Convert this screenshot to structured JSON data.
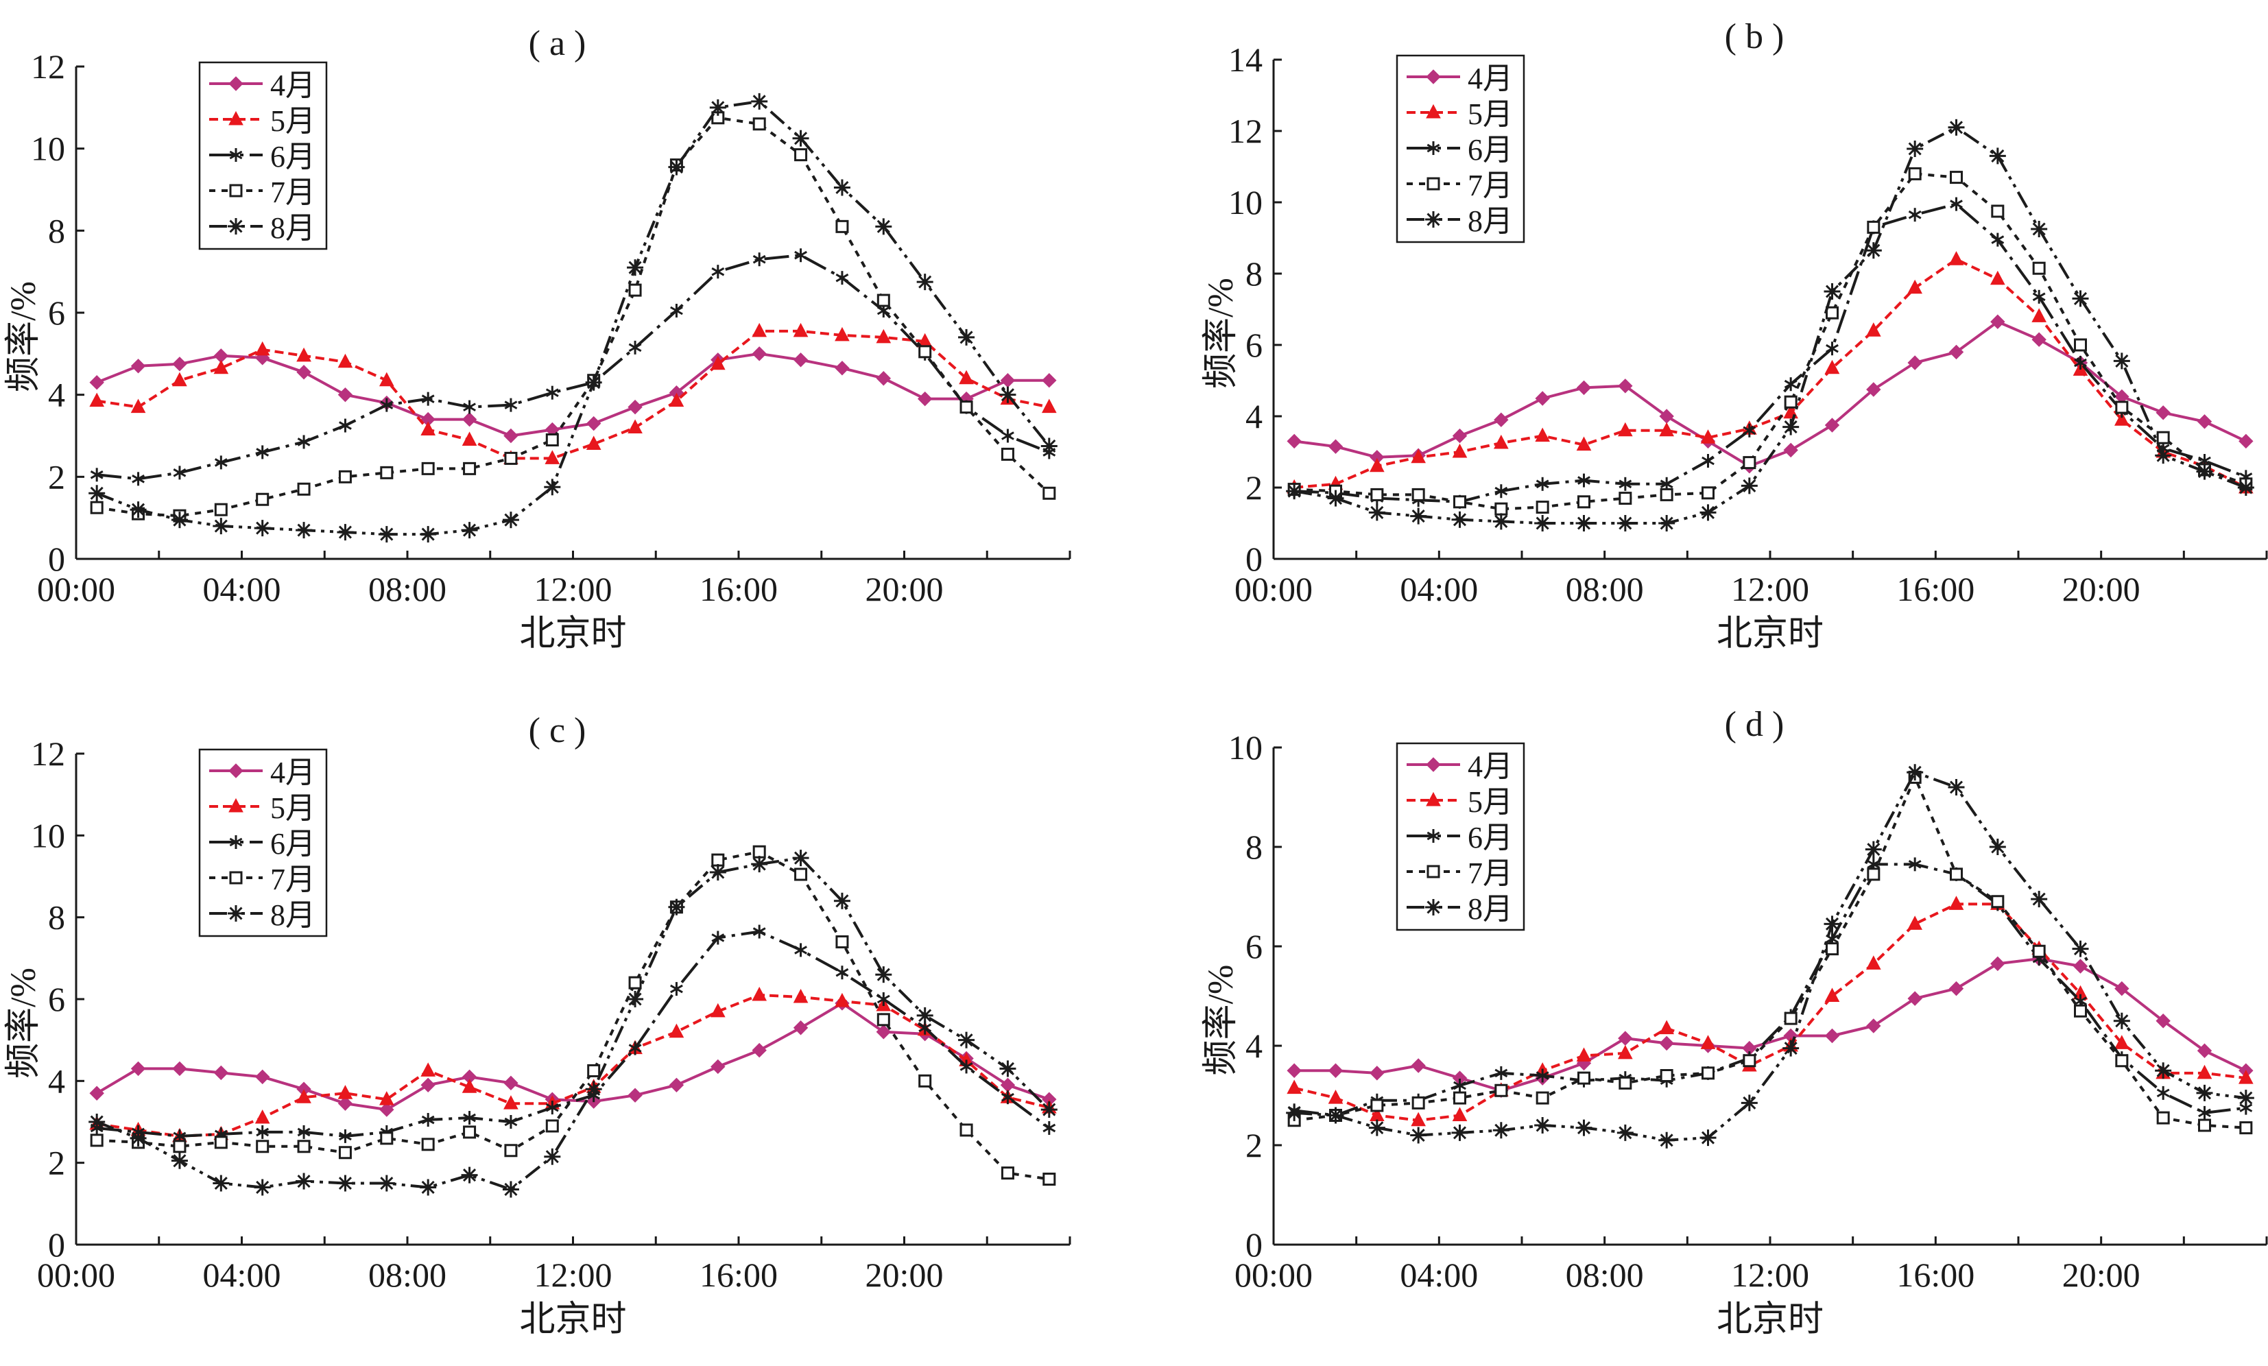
{
  "figure": {
    "colors": {
      "4月": "#b8327e",
      "5月": "#e8171d",
      "6月": "#1c1c1c",
      "7月": "#1c1c1c",
      "8月": "#1c1c1c",
      "axis": "#1a1a1a"
    }
  },
  "chart_data": [
    {
      "panel": "(a)",
      "type": "line",
      "title": "( a )",
      "xlabel": "北京时",
      "ylabel": "频率/%",
      "xlim": [
        0,
        24
      ],
      "ylim": [
        0,
        12
      ],
      "yticks": [
        0,
        2,
        4,
        6,
        8,
        10,
        12
      ],
      "xtick_labels": [
        "00:00",
        "04:00",
        "08:00",
        "12:00",
        "16:00",
        "20:00"
      ],
      "legend_position": "top-left",
      "grid": false,
      "x": [
        0.5,
        1.5,
        2.5,
        3.5,
        4.5,
        5.5,
        6.5,
        7.5,
        8.5,
        9.5,
        10.5,
        11.5,
        12.5,
        13.5,
        14.5,
        15.5,
        16.5,
        17.5,
        18.5,
        19.5,
        20.5,
        21.5,
        22.5,
        23.5
      ],
      "series": [
        {
          "name": "4月",
          "values": [
            4.3,
            4.7,
            4.75,
            4.95,
            4.9,
            4.55,
            4.0,
            3.8,
            3.4,
            3.4,
            3.0,
            3.15,
            3.3,
            3.7,
            4.05,
            4.85,
            5.0,
            4.85,
            4.65,
            4.4,
            3.9,
            3.9,
            4.35,
            4.35
          ]
        },
        {
          "name": "5月",
          "values": [
            3.85,
            3.7,
            4.35,
            4.65,
            5.1,
            4.95,
            4.8,
            4.35,
            3.15,
            2.9,
            2.45,
            2.45,
            2.8,
            3.2,
            3.85,
            4.75,
            5.55,
            5.55,
            5.45,
            5.4,
            5.3,
            4.4,
            3.9,
            3.7
          ]
        },
        {
          "name": "6月",
          "values": [
            2.05,
            1.95,
            2.1,
            2.35,
            2.6,
            2.85,
            3.25,
            3.75,
            3.9,
            3.7,
            3.75,
            4.05,
            4.3,
            5.15,
            6.05,
            7.0,
            7.3,
            7.4,
            6.85,
            6.05,
            5.0,
            3.7,
            3.0,
            2.6
          ]
        },
        {
          "name": "7月",
          "values": [
            1.25,
            1.1,
            1.05,
            1.2,
            1.45,
            1.7,
            2.0,
            2.1,
            2.2,
            2.2,
            2.45,
            2.9,
            4.35,
            6.55,
            9.6,
            10.75,
            10.6,
            9.85,
            8.1,
            6.3,
            5.05,
            3.7,
            2.55,
            1.6
          ]
        },
        {
          "name": "8月",
          "values": [
            1.6,
            1.2,
            0.95,
            0.8,
            0.75,
            0.7,
            0.65,
            0.6,
            0.6,
            0.7,
            0.95,
            1.75,
            4.3,
            7.1,
            9.55,
            11.0,
            11.15,
            10.25,
            9.05,
            8.1,
            6.75,
            5.4,
            4.0,
            2.75
          ]
        }
      ]
    },
    {
      "panel": "(b)",
      "type": "line",
      "title": "( b )",
      "xlabel": "北京时",
      "ylabel": "频率/%",
      "xlim": [
        0,
        24
      ],
      "ylim": [
        0,
        14
      ],
      "yticks": [
        0,
        2,
        4,
        6,
        8,
        10,
        12,
        14
      ],
      "xtick_labels": [
        "00:00",
        "04:00",
        "08:00",
        "12:00",
        "16:00",
        "20:00"
      ],
      "legend_position": "top-left",
      "grid": false,
      "x": [
        0.5,
        1.5,
        2.5,
        3.5,
        4.5,
        5.5,
        6.5,
        7.5,
        8.5,
        9.5,
        10.5,
        11.5,
        12.5,
        13.5,
        14.5,
        15.5,
        16.5,
        17.5,
        18.5,
        19.5,
        20.5,
        21.5,
        22.5,
        23.5
      ],
      "series": [
        {
          "name": "4月",
          "values": [
            3.3,
            3.15,
            2.85,
            2.9,
            3.45,
            3.9,
            4.5,
            4.8,
            4.85,
            4.0,
            3.3,
            2.6,
            3.05,
            3.75,
            4.75,
            5.5,
            5.8,
            6.65,
            6.15,
            5.5,
            4.55,
            4.1,
            3.85,
            3.3
          ]
        },
        {
          "name": "5月",
          "values": [
            2.0,
            2.1,
            2.6,
            2.85,
            3.0,
            3.25,
            3.45,
            3.2,
            3.6,
            3.6,
            3.4,
            3.65,
            4.1,
            5.35,
            6.4,
            7.6,
            8.4,
            7.85,
            6.8,
            5.3,
            3.9,
            3.0,
            2.6,
            2.0
          ]
        },
        {
          "name": "6月",
          "values": [
            1.9,
            1.85,
            1.7,
            1.65,
            1.6,
            1.9,
            2.1,
            2.2,
            2.1,
            2.1,
            2.75,
            3.6,
            4.9,
            5.9,
            9.3,
            9.65,
            9.95,
            8.95,
            7.35,
            5.5,
            4.15,
            3.1,
            2.75,
            2.3
          ]
        },
        {
          "name": "7月",
          "values": [
            1.95,
            1.9,
            1.8,
            1.8,
            1.6,
            1.4,
            1.45,
            1.6,
            1.7,
            1.8,
            1.85,
            2.7,
            4.4,
            6.9,
            9.3,
            10.8,
            10.7,
            9.75,
            8.15,
            6.0,
            4.25,
            3.4,
            2.5,
            2.1
          ]
        },
        {
          "name": "8月",
          "values": [
            1.9,
            1.7,
            1.3,
            1.2,
            1.1,
            1.05,
            1.0,
            1.0,
            1.0,
            1.0,
            1.3,
            2.05,
            3.7,
            7.5,
            8.65,
            11.5,
            12.1,
            11.3,
            9.25,
            7.3,
            5.55,
            2.9,
            2.45,
            2.0
          ]
        }
      ]
    },
    {
      "panel": "(c)",
      "type": "line",
      "title": "( c )",
      "xlabel": "北京时",
      "ylabel": "频率/%",
      "xlim": [
        0,
        24
      ],
      "ylim": [
        0,
        12
      ],
      "yticks": [
        0,
        2,
        4,
        6,
        8,
        10,
        12
      ],
      "xtick_labels": [
        "00:00",
        "04:00",
        "08:00",
        "12:00",
        "16:00",
        "20:00"
      ],
      "legend_position": "top-left",
      "grid": false,
      "x": [
        0.5,
        1.5,
        2.5,
        3.5,
        4.5,
        5.5,
        6.5,
        7.5,
        8.5,
        9.5,
        10.5,
        11.5,
        12.5,
        13.5,
        14.5,
        15.5,
        16.5,
        17.5,
        18.5,
        19.5,
        20.5,
        21.5,
        22.5,
        23.5
      ],
      "series": [
        {
          "name": "4月",
          "values": [
            3.7,
            4.3,
            4.3,
            4.2,
            4.1,
            3.8,
            3.45,
            3.3,
            3.9,
            4.1,
            3.95,
            3.55,
            3.5,
            3.65,
            3.9,
            4.35,
            4.75,
            5.3,
            5.9,
            5.2,
            5.15,
            4.55,
            3.9,
            3.55
          ]
        },
        {
          "name": "5月",
          "values": [
            2.95,
            2.8,
            2.65,
            2.7,
            3.1,
            3.6,
            3.7,
            3.55,
            4.25,
            3.85,
            3.45,
            3.45,
            3.85,
            4.8,
            5.2,
            5.7,
            6.1,
            6.05,
            5.95,
            5.85,
            5.25,
            4.5,
            3.6,
            3.35
          ]
        },
        {
          "name": "6月",
          "values": [
            2.85,
            2.75,
            2.65,
            2.7,
            2.75,
            2.75,
            2.65,
            2.75,
            3.05,
            3.1,
            3.0,
            3.35,
            3.65,
            4.8,
            6.25,
            7.5,
            7.65,
            7.2,
            6.65,
            6.0,
            5.3,
            4.35,
            3.6,
            2.85
          ]
        },
        {
          "name": "7月",
          "values": [
            2.55,
            2.5,
            2.4,
            2.5,
            2.4,
            2.4,
            2.25,
            2.6,
            2.45,
            2.75,
            2.3,
            2.9,
            4.25,
            6.4,
            8.25,
            9.4,
            9.6,
            9.05,
            7.4,
            5.5,
            4.0,
            2.8,
            1.75,
            1.6
          ]
        },
        {
          "name": "8月",
          "values": [
            3.0,
            2.6,
            2.05,
            1.5,
            1.4,
            1.55,
            1.5,
            1.5,
            1.4,
            1.7,
            1.35,
            2.15,
            3.8,
            6.0,
            8.25,
            9.1,
            9.3,
            9.45,
            8.4,
            6.6,
            5.6,
            5.0,
            4.3,
            3.3
          ]
        }
      ]
    },
    {
      "panel": "(d)",
      "type": "line",
      "title": "( d )",
      "xlabel": "北京时",
      "ylabel": "频率/%",
      "xlim": [
        0,
        24
      ],
      "ylim": [
        0,
        10
      ],
      "yticks": [
        0,
        2,
        4,
        6,
        8,
        10
      ],
      "xtick_labels": [
        "00:00",
        "04:00",
        "08:00",
        "12:00",
        "16:00",
        "20:00"
      ],
      "legend_position": "top-left",
      "grid": false,
      "x": [
        0.5,
        1.5,
        2.5,
        3.5,
        4.5,
        5.5,
        6.5,
        7.5,
        8.5,
        9.5,
        10.5,
        11.5,
        12.5,
        13.5,
        14.5,
        15.5,
        16.5,
        17.5,
        18.5,
        19.5,
        20.5,
        21.5,
        22.5,
        23.5
      ],
      "series": [
        {
          "name": "4月",
          "values": [
            3.5,
            3.5,
            3.45,
            3.6,
            3.35,
            3.1,
            3.35,
            3.65,
            4.15,
            4.05,
            4.0,
            3.95,
            4.2,
            4.2,
            4.4,
            4.95,
            5.15,
            5.65,
            5.75,
            5.6,
            5.15,
            4.5,
            3.9,
            3.5
          ]
        },
        {
          "name": "5月",
          "values": [
            3.15,
            2.95,
            2.6,
            2.5,
            2.6,
            3.1,
            3.5,
            3.8,
            3.85,
            4.35,
            4.05,
            3.6,
            4.0,
            5.0,
            5.65,
            6.45,
            6.85,
            6.85,
            5.95,
            5.05,
            4.05,
            3.45,
            3.45,
            3.35
          ]
        },
        {
          "name": "6月",
          "values": [
            2.7,
            2.6,
            2.9,
            2.9,
            3.2,
            3.45,
            3.4,
            3.3,
            3.35,
            3.3,
            3.45,
            3.75,
            4.6,
            6.15,
            7.65,
            7.65,
            7.45,
            6.85,
            5.75,
            4.9,
            3.75,
            3.05,
            2.65,
            2.75
          ]
        },
        {
          "name": "7月",
          "values": [
            2.5,
            2.6,
            2.8,
            2.85,
            2.95,
            3.1,
            2.95,
            3.35,
            3.25,
            3.4,
            3.45,
            3.7,
            4.55,
            5.95,
            7.45,
            9.4,
            7.45,
            6.9,
            5.9,
            4.7,
            3.7,
            2.55,
            2.4,
            2.35
          ]
        },
        {
          "name": "8月",
          "values": [
            2.65,
            2.6,
            2.35,
            2.2,
            2.25,
            2.3,
            2.4,
            2.35,
            2.25,
            2.1,
            2.15,
            2.85,
            3.95,
            6.45,
            7.95,
            9.5,
            9.2,
            8.0,
            6.95,
            5.95,
            4.5,
            3.5,
            3.05,
            2.95
          ]
        }
      ]
    }
  ]
}
